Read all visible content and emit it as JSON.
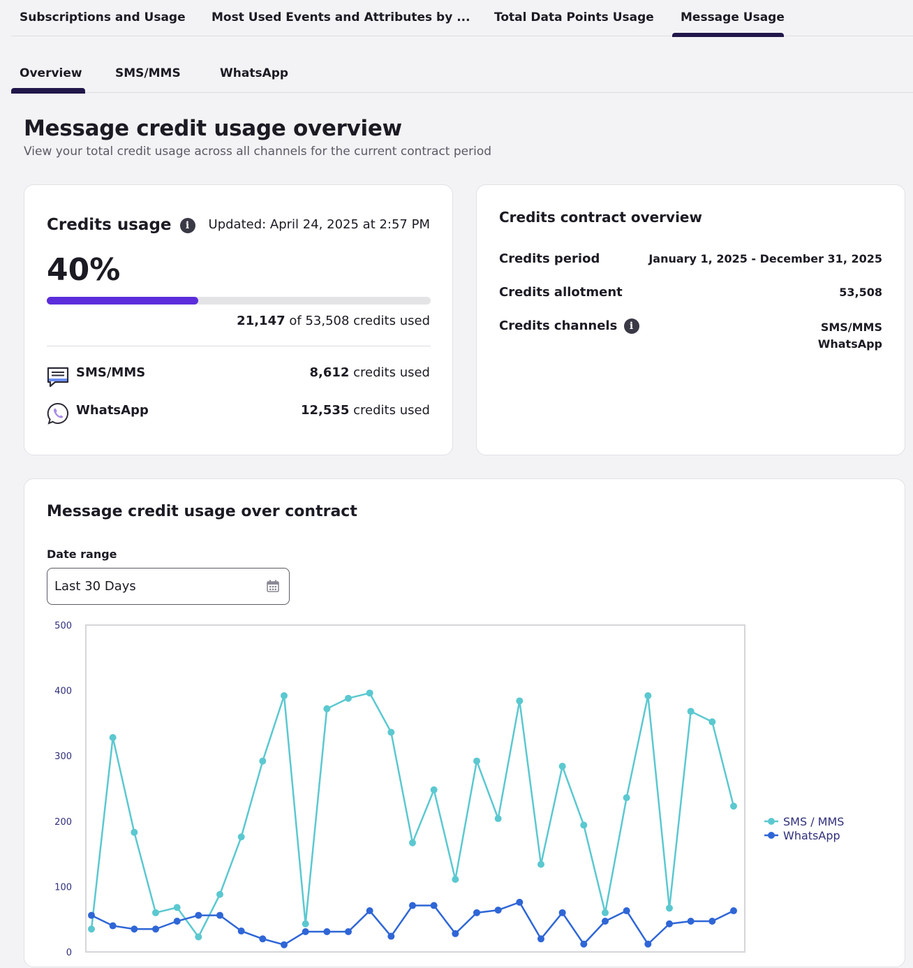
{
  "top_tabs": [
    {
      "label": "Subscriptions and Usage"
    },
    {
      "label": "Most Used Events and Attributes by ..."
    },
    {
      "label": "Total Data Points Usage"
    },
    {
      "label": "Message Usage"
    }
  ],
  "sub_tabs": [
    {
      "label": "Overview"
    },
    {
      "label": "SMS/MMS"
    },
    {
      "label": "WhatsApp"
    }
  ],
  "page": {
    "title": "Message credit usage overview",
    "subtitle": "View your total credit usage across all channels for the current contract period"
  },
  "usage_card": {
    "title": "Credits usage",
    "updated": "Updated: April 24, 2025 at 2:57 PM",
    "percent_label": "40%",
    "progress_fraction": 0.395,
    "used": "21,147",
    "total_text": "of 53,508 credits used",
    "channels": [
      {
        "name": "SMS/MMS",
        "icon": "chat-bubble-icon",
        "value": "8,612",
        "suffix": "credits used"
      },
      {
        "name": "WhatsApp",
        "icon": "whatsapp-icon",
        "value": "12,535",
        "suffix": "credits used"
      }
    ]
  },
  "contract_card": {
    "title": "Credits contract overview",
    "rows": [
      {
        "label": "Credits period",
        "value": "January 1, 2025 - December 31, 2025"
      },
      {
        "label": "Credits allotment",
        "value": "53,508"
      },
      {
        "label": "Credits channels",
        "values": [
          "SMS/MMS",
          "WhatsApp"
        ]
      }
    ]
  },
  "chart_card": {
    "title": "Message credit usage over contract",
    "date_range_label": "Date range",
    "date_range_value": "Last 30 Days"
  },
  "colors": {
    "accent": "#5b2ddb",
    "sms_series": "#5bc8d0",
    "whatsapp_series": "#2f66d6",
    "tab_underline": "#21174a"
  },
  "chart_data": {
    "type": "line",
    "ylim": [
      0,
      500
    ],
    "yticks": [
      0,
      100,
      200,
      300,
      400,
      500
    ],
    "legend": "right",
    "grid": false,
    "series": [
      {
        "name": "SMS / MMS",
        "color": "#5bc8d0",
        "values": [
          35,
          328,
          183,
          60,
          68,
          23,
          88,
          176,
          292,
          392,
          43,
          372,
          388,
          396,
          336,
          167,
          248,
          111,
          292,
          204,
          384,
          134,
          284,
          194,
          60,
          236,
          392,
          67,
          368,
          352,
          223
        ]
      },
      {
        "name": "WhatsApp",
        "color": "#2f66d6",
        "values": [
          56,
          40,
          35,
          35,
          47,
          56,
          56,
          32,
          20,
          11,
          31,
          31,
          31,
          63,
          24,
          71,
          71,
          28,
          60,
          64,
          76,
          20,
          60,
          12,
          47,
          63,
          12,
          43,
          47,
          47,
          63
        ]
      }
    ]
  }
}
